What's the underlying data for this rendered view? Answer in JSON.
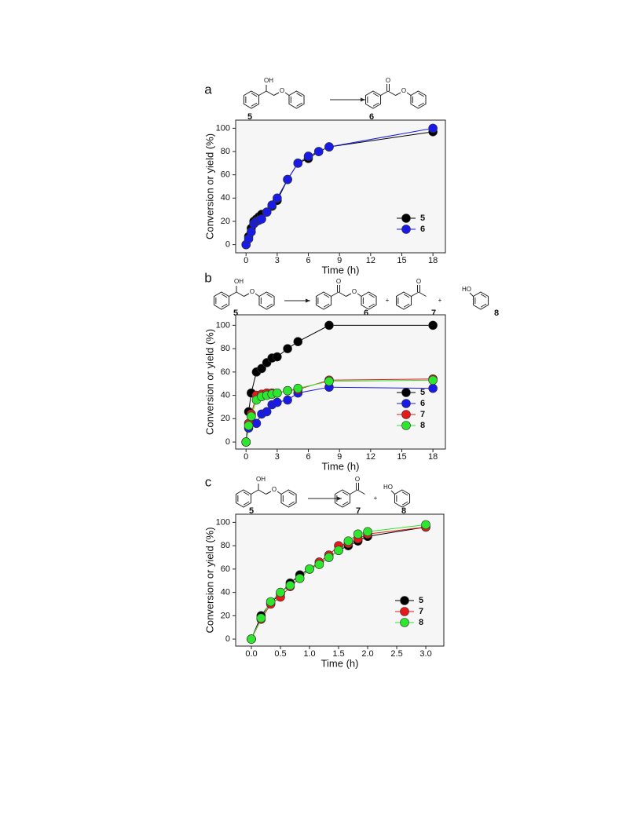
{
  "chart_data": [
    {
      "type": "line",
      "panel": "a",
      "scheme": {
        "compounds": [
          "5",
          "6"
        ],
        "texts": [
          "OH",
          "O",
          "O",
          "O"
        ]
      },
      "xlabel": "Time (h)",
      "ylabel": "Conversion or yield (%)",
      "x": [
        0,
        0.25,
        0.5,
        0.75,
        1,
        1.25,
        1.5,
        2,
        2.5,
        3,
        4,
        5,
        6,
        7,
        8,
        18
      ],
      "xlim": [
        -1,
        19.2
      ],
      "xticks": [
        0,
        3,
        6,
        9,
        12,
        15,
        18
      ],
      "ylim": [
        -7,
        107
      ],
      "yticks": [
        0,
        20,
        40,
        60,
        80,
        100
      ],
      "legend": "lower right",
      "series": [
        {
          "name": "5",
          "color": "#000000",
          "values": [
            0,
            7,
            14,
            20,
            22,
            24,
            26,
            28,
            33,
            38,
            56,
            70,
            74,
            80,
            84,
            97
          ]
        },
        {
          "name": "6",
          "color": "#1a1ae6",
          "values": [
            0,
            5,
            11,
            18,
            20,
            21,
            22,
            28,
            34,
            40,
            56,
            70,
            76,
            80,
            84,
            100
          ]
        }
      ]
    },
    {
      "type": "line",
      "panel": "b",
      "scheme": {
        "compounds": [
          "5",
          "6",
          "7",
          "8"
        ],
        "texts": [
          "OH",
          "O",
          "O",
          "O",
          "+",
          "O",
          "+",
          "HO"
        ]
      },
      "xlabel": "Time (h)",
      "ylabel": "Conversion or yield (%)",
      "x": [
        0,
        0.25,
        0.5,
        1,
        1.5,
        2,
        2.5,
        3,
        4,
        5,
        8,
        18
      ],
      "xlim": [
        -1,
        19.2
      ],
      "xticks": [
        0,
        3,
        6,
        9,
        12,
        15,
        18
      ],
      "ylim": [
        -6,
        109
      ],
      "yticks": [
        0,
        20,
        40,
        60,
        80,
        100
      ],
      "legend": "lower right",
      "series": [
        {
          "name": "5",
          "color": "#000000",
          "values": [
            0,
            26,
            42,
            60,
            63,
            68,
            72,
            73,
            80,
            86,
            100,
            100
          ]
        },
        {
          "name": "6",
          "color": "#1a1ae6",
          "values": [
            0,
            12,
            22,
            16,
            24,
            26,
            32,
            34,
            36,
            42,
            47,
            46
          ]
        },
        {
          "name": "7",
          "color": "#e61a1a",
          "values": [
            0,
            16,
            24,
            40,
            41,
            42,
            42,
            42,
            44,
            45,
            53,
            54
          ]
        },
        {
          "name": "8",
          "color": "#2ee62e",
          "values": [
            0,
            14,
            22,
            36,
            39,
            40,
            41,
            42,
            44,
            46,
            52,
            53
          ]
        }
      ]
    },
    {
      "type": "line",
      "panel": "c",
      "scheme": {
        "compounds": [
          "5",
          "7",
          "8"
        ],
        "texts": [
          "OH",
          "O",
          "O",
          "+",
          "HO"
        ]
      },
      "xlabel": "Time (h)",
      "ylabel": "Conversion or yield (%)",
      "x": [
        0,
        0.167,
        0.333,
        0.5,
        0.667,
        0.833,
        1,
        1.167,
        1.333,
        1.5,
        1.667,
        1.833,
        2,
        3
      ],
      "xlim": [
        -0.27,
        3.31
      ],
      "xticks": [
        {
          "value": 0,
          "label": "0.0"
        },
        0.5,
        {
          "value": 1,
          "label": "1.0"
        },
        1.5,
        {
          "value": 2,
          "label": "2.0"
        },
        2.5,
        {
          "value": 3,
          "label": "3.0"
        }
      ],
      "ylim": [
        -6,
        107
      ],
      "yticks": [
        0,
        20,
        40,
        60,
        80,
        100
      ],
      "legend": "lower right",
      "series": [
        {
          "name": "5",
          "color": "#000000",
          "values": [
            0,
            20,
            31,
            39,
            48,
            55,
            60,
            64,
            70,
            76,
            80,
            84,
            88,
            96
          ]
        },
        {
          "name": "7",
          "color": "#e61a1a",
          "values": [
            0,
            17,
            30,
            36,
            45,
            52,
            60,
            66,
            72,
            80,
            82,
            86,
            90,
            96
          ]
        },
        {
          "name": "8",
          "color": "#2ee62e",
          "values": [
            0,
            18,
            32,
            40,
            46,
            52,
            60,
            64,
            70,
            76,
            84,
            90,
            92,
            98
          ]
        }
      ]
    }
  ]
}
